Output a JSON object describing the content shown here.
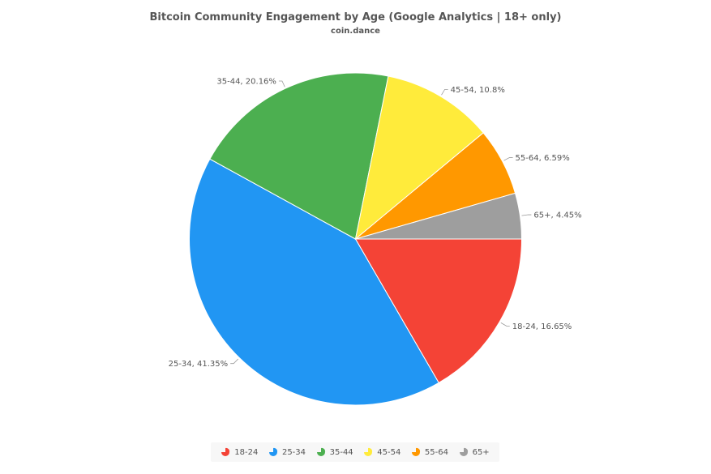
{
  "chart_data": {
    "type": "pie",
    "title": "Bitcoin Community Engagement by Age (Google Analytics | 18+ only)",
    "subtitle": "coin.dance",
    "slices": [
      {
        "label": "18-24",
        "value": 16.65,
        "display": "18-24, 16.65%",
        "color": "#F44336"
      },
      {
        "label": "25-34",
        "value": 41.35,
        "display": "25-34, 41.35%",
        "color": "#2196F3"
      },
      {
        "label": "35-44",
        "value": 20.16,
        "display": "35-44, 20.16%",
        "color": "#4CAF50"
      },
      {
        "label": "45-54",
        "value": 10.8,
        "display": "45-54, 10.8%",
        "color": "#FFEB3B"
      },
      {
        "label": "55-64",
        "value": 6.59,
        "display": "55-64, 6.59%",
        "color": "#FF9800"
      },
      {
        "label": "65+",
        "value": 4.45,
        "display": "65+, 4.45%",
        "color": "#9E9E9E"
      }
    ],
    "legend_position": "bottom"
  }
}
